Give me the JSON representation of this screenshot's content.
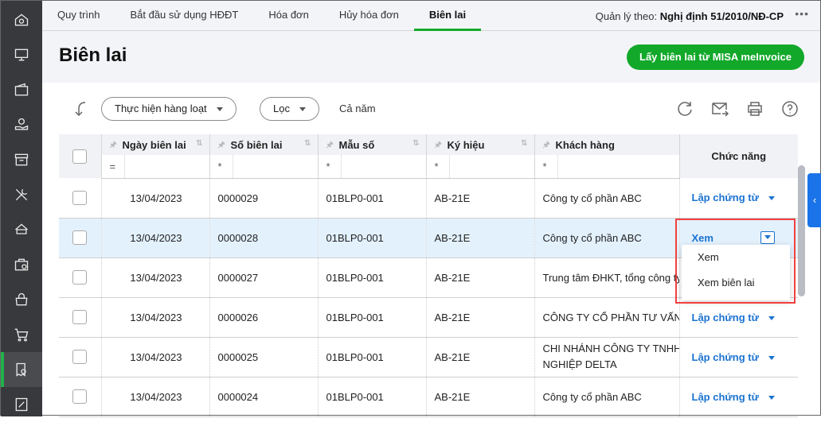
{
  "sidebar": {
    "items": [
      {
        "icon": "home-money-icon"
      },
      {
        "icon": "monitor-money-icon"
      },
      {
        "icon": "wallet-icon"
      },
      {
        "icon": "hand-money-icon"
      },
      {
        "icon": "box-icon"
      },
      {
        "icon": "tools-icon"
      },
      {
        "icon": "car-icon"
      },
      {
        "icon": "bag-money-icon"
      },
      {
        "icon": "lock-bag-icon"
      },
      {
        "icon": "cart-icon"
      },
      {
        "icon": "receipt-icon",
        "active": true
      },
      {
        "icon": "tax-icon"
      }
    ]
  },
  "topnav": {
    "tabs": [
      "Quy trình",
      "Bắt đầu sử dụng HĐĐT",
      "Hóa đơn",
      "Hủy hóa đơn",
      "Biên lai"
    ],
    "active": "Biên lai",
    "manage_label": "Quản lý theo:",
    "manage_value": "Nghị định 51/2010/NĐ-CP",
    "more": "•••"
  },
  "header": {
    "title": "Biên lai",
    "primary_button": "Lấy biên lai từ MISA meInvoice"
  },
  "toolbar": {
    "bulk_action": "Thực hiện hàng loạt",
    "filter": "Lọc",
    "period": "Cả năm",
    "icons": [
      "refresh-icon",
      "send-email-icon",
      "print-icon",
      "help-icon"
    ]
  },
  "table": {
    "columns": [
      "Ngày biên lai",
      "Số biên lai",
      "Mẫu số",
      "Ký hiệu",
      "Khách hàng",
      "Chức năng"
    ],
    "filters": [
      "=",
      "*",
      "*",
      "*",
      "*"
    ],
    "rows": [
      {
        "date": "13/04/2023",
        "number": "0000029",
        "template": "01BLP0-001",
        "symbol": "AB-21E",
        "customer": "Công ty cổ phần ABC",
        "action": "Lập chứng từ"
      },
      {
        "date": "13/04/2023",
        "number": "0000028",
        "template": "01BLP0-001",
        "symbol": "AB-21E",
        "customer": "Công ty cổ phần ABC",
        "action": "Xem",
        "selected": true
      },
      {
        "date": "13/04/2023",
        "number": "0000027",
        "template": "01BLP0-001",
        "symbol": "AB-21E",
        "customer": "Trung tâm ĐHKT, tổng công ty",
        "action": ""
      },
      {
        "date": "13/04/2023",
        "number": "0000026",
        "template": "01BLP0-001",
        "symbol": "AB-21E",
        "customer": "CÔNG TY CỔ PHẦN TƯ VẤN V",
        "action": "Lập chứng từ"
      },
      {
        "date": "13/04/2023",
        "number": "0000025",
        "template": "01BLP0-001",
        "symbol": "AB-21E",
        "customer": "CHI NHÁNH CÔNG TY TNHH",
        "customer2": "NGHIỆP DELTA",
        "action": "Lập chứng từ"
      },
      {
        "date": "13/04/2023",
        "number": "0000024",
        "template": "01BLP0-001",
        "symbol": "AB-21E",
        "customer": "Công ty cổ phần ABC",
        "action": "Lập chứng từ"
      }
    ]
  },
  "dropdown": {
    "items": [
      "Xem",
      "Xem biên lai"
    ]
  },
  "colors": {
    "accent": "#12a82a",
    "link": "#1a73d0",
    "highlight": "#f04040",
    "sidebar": "#38393c"
  }
}
